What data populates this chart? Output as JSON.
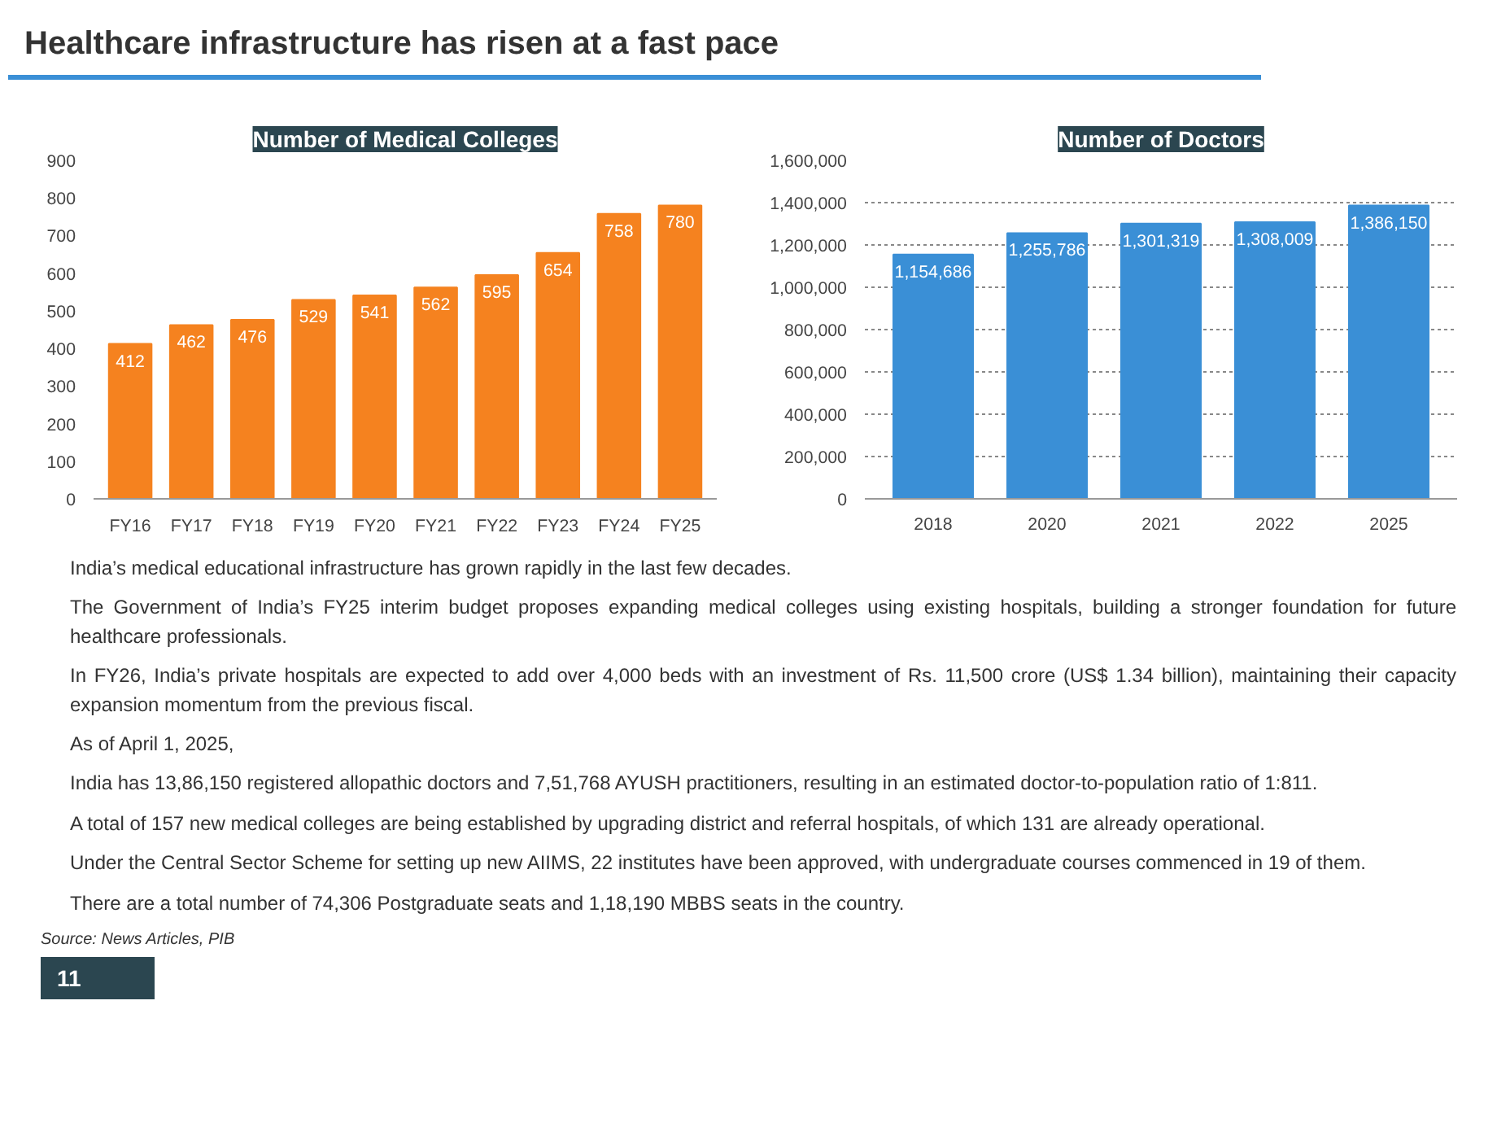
{
  "chart_data": [
    {
      "type": "bar",
      "title": "Number of Medical Colleges",
      "categories": [
        "FY16",
        "FY17",
        "FY18",
        "FY19",
        "FY20",
        "FY21",
        "FY22",
        "FY23",
        "FY24",
        "FY25"
      ],
      "values": [
        412,
        462,
        476,
        529,
        541,
        562,
        595,
        654,
        758,
        780
      ],
      "color": "#f5821f",
      "ylim": [
        0,
        900
      ],
      "yticks": [
        0,
        100,
        200,
        300,
        400,
        500,
        600,
        700,
        800,
        900
      ],
      "grid": false,
      "data_labels": true,
      "annotations": [
        "Healthcare infrastructure has risen at a fast pace"
      ]
    },
    {
      "type": "bar",
      "title": "Number of Doctors",
      "categories": [
        "2018",
        "2020",
        "2021",
        "2022",
        "2025"
      ],
      "values": [
        1154686,
        1255786,
        1301319,
        1308009,
        1386150
      ],
      "color": "#3a8fd6",
      "ylim": [
        0,
        1600000
      ],
      "yticks": [
        {
          "value": 0,
          "label": "0"
        },
        {
          "value": 200000,
          "label": "200,000"
        },
        {
          "value": 400000,
          "label": "400,000"
        },
        {
          "value": 600000,
          "label": "600,000"
        },
        {
          "value": 800000,
          "label": "800,000"
        },
        {
          "value": 1000000,
          "label": "1,000,000"
        },
        {
          "value": 1200000,
          "label": "1,200,000"
        },
        {
          "value": 1400000,
          "label": "1,400,000"
        },
        {
          "value": 1600000,
          "label": "1,600,000"
        }
      ],
      "grid": "y",
      "value_labels": [
        "1,154,686",
        "1,255,786",
        "1,301,319",
        "1,308,009",
        "1,386,150"
      ],
      "annotations": [
        "India’s medical educational infrastructure has grown rapidly in the last few decades.",
        "The Government of India’s FY25 interim budget proposes expanding medical colleges using existing hospitals, building a stronger foundation for future healthcare professionals.",
        "In FY26, India’s private hospitals are expected to add over 4,000 beds with an investment of Rs. 11,500 crore (US$ 1.34 billion), maintaining their capacity expansion momentum from the previous fiscal.",
        "As of April 1, 2025,",
        "India has 13,86,150 registered allopathic doctors and 7,51,768 AYUSH practitioners, resulting in an estimated doctor-to-population ratio of 1:811.",
        "A total of 157 new medical colleges are being established by upgrading district and referral hospitals, of which 131 are already operational.",
        "Under the Central Sector Scheme for setting up new AIIMS, 22 institutes have been approved, with undergraduate courses commenced in 19 of them.",
        "There are a total number of 74,306 Postgraduate seats and 1,18,190 MBBS seats in the country.",
        "Source: News Articles, PIB",
        "11"
      ]
    }
  ]
}
